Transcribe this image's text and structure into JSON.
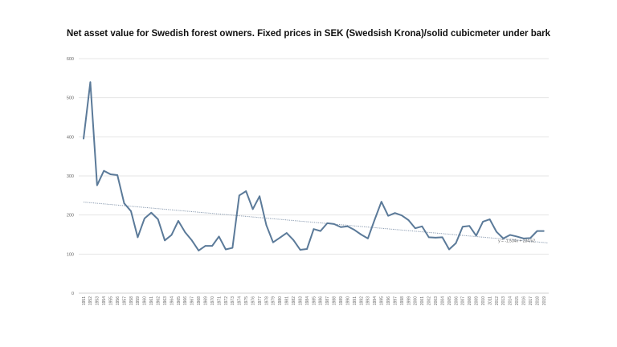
{
  "chart_data": {
    "type": "line",
    "title": "Net asset value for Swedish forest owners. Fixed prices in SEK (Swedsish Krona)/solid cubicmeter under bark",
    "xlabel": "",
    "ylabel": "",
    "ylim": [
      0,
      600
    ],
    "yticks": [
      "0",
      "100",
      "200",
      "300",
      "400",
      "500",
      "600"
    ],
    "grid": true,
    "x": [
      1951,
      1952,
      1953,
      1954,
      1955,
      1956,
      1957,
      1958,
      1959,
      1960,
      1961,
      1962,
      1963,
      1964,
      1965,
      1966,
      1967,
      1968,
      1969,
      1970,
      1971,
      1972,
      1973,
      1974,
      1975,
      1976,
      1977,
      1978,
      1979,
      1980,
      1981,
      1982,
      1983,
      1984,
      1985,
      1986,
      1987,
      1988,
      1989,
      1990,
      1991,
      1992,
      1993,
      1994,
      1995,
      1996,
      1997,
      1998,
      1999,
      2000,
      2001,
      2002,
      2003,
      2004,
      2005,
      2006,
      2007,
      2008,
      2009,
      2010,
      2011,
      2012,
      2013,
      2014,
      2015,
      2016,
      2017,
      2018,
      2019
    ],
    "series": [
      {
        "values": [
          395,
          540,
          276,
          313,
          304,
          302,
          230,
          210,
          143,
          191,
          206,
          189,
          135,
          149,
          185,
          156,
          135,
          109,
          121,
          121,
          145,
          112,
          116,
          250,
          261,
          215,
          248,
          174,
          130,
          142,
          154,
          136,
          111,
          113,
          164,
          159,
          179,
          177,
          169,
          171,
          162,
          150,
          140,
          188,
          234,
          198,
          205,
          199,
          187,
          166,
          171,
          143,
          142,
          143,
          112,
          128,
          170,
          172,
          147,
          183,
          189,
          157,
          140,
          149,
          145,
          140,
          141,
          159,
          159
        ],
        "color": "#5b7a99"
      }
    ],
    "trendline": {
      "type": "linear",
      "slope": -1.534,
      "intercept": 234.52,
      "label": "y = -1,534x + 234,52",
      "color": "#8a9bb0"
    }
  }
}
